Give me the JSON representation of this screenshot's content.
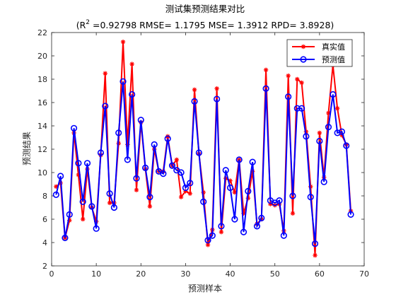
{
  "chart_data": {
    "type": "line",
    "title": "测试集预测结果对比",
    "subtitle_prefix": "(R",
    "subtitle_sup": "2",
    "subtitle_rest": " =0.92798 RMSE= 1.1795 MSE= 1.3912 RPD= 3.8928)",
    "xlabel": "预测样本",
    "ylabel": "预测结果",
    "xlim": [
      0,
      70
    ],
    "ylim": [
      2,
      22
    ],
    "xticks": [
      0,
      10,
      20,
      30,
      40,
      50,
      60,
      70
    ],
    "yticks": [
      2,
      4,
      6,
      8,
      10,
      12,
      14,
      16,
      18,
      20,
      22
    ],
    "grid": false,
    "legend_position": "top-right",
    "x": [
      1,
      2,
      3,
      4,
      5,
      6,
      7,
      8,
      9,
      10,
      11,
      12,
      13,
      14,
      15,
      16,
      17,
      18,
      19,
      20,
      21,
      22,
      23,
      24,
      25,
      26,
      27,
      28,
      29,
      30,
      31,
      32,
      33,
      34,
      35,
      36,
      37,
      38,
      39,
      40,
      41,
      42,
      43,
      44,
      45,
      46,
      47,
      48,
      49,
      50,
      51,
      52,
      53,
      54,
      55,
      56,
      57,
      58,
      59,
      60,
      61,
      62,
      63,
      64,
      65,
      66,
      67
    ],
    "series": [
      {
        "name": "真实值",
        "color": "#ff0000",
        "marker": "asterisk",
        "values": [
          8.8,
          9.1,
          4.4,
          5.9,
          13.4,
          9.8,
          6.0,
          10.3,
          7.0,
          5.8,
          11.5,
          18.5,
          7.4,
          7.4,
          12.5,
          21.2,
          12.4,
          19.3,
          8.5,
          14.3,
          10.3,
          7.1,
          12.0,
          10.1,
          10.1,
          13.1,
          10.6,
          11.1,
          7.9,
          8.4,
          8.2,
          17.1,
          11.6,
          8.3,
          3.8,
          5.1,
          17.2,
          4.9,
          9.5,
          9.3,
          8.3,
          11.1,
          6.5,
          7.8,
          10.1,
          5.6,
          6.0,
          18.8,
          7.3,
          7.2,
          7.3,
          5.0,
          18.3,
          6.5,
          18.0,
          17.7,
          13.5,
          8.8,
          2.9,
          13.4,
          9.6,
          15.1,
          19.2,
          15.5,
          13.2,
          12.4,
          6.7
        ]
      },
      {
        "name": "预测值",
        "color": "#0000ff",
        "marker": "circle",
        "values": [
          8.1,
          9.7,
          4.4,
          6.4,
          13.8,
          10.8,
          7.5,
          10.8,
          7.1,
          5.2,
          11.7,
          15.7,
          8.2,
          7.0,
          13.4,
          17.8,
          11.1,
          16.7,
          9.5,
          14.5,
          10.4,
          7.9,
          12.4,
          10.1,
          9.9,
          12.9,
          10.6,
          10.2,
          10.0,
          8.7,
          9.1,
          16.1,
          11.7,
          7.5,
          4.2,
          4.6,
          16.3,
          5.4,
          10.2,
          8.7,
          6.0,
          11.1,
          4.9,
          8.4,
          10.9,
          5.4,
          6.1,
          17.2,
          7.6,
          7.4,
          7.6,
          4.6,
          16.5,
          8.0,
          15.5,
          15.5,
          13.1,
          7.9,
          3.9,
          12.7,
          9.2,
          13.9,
          16.7,
          13.4,
          13.5,
          12.3,
          6.4
        ]
      }
    ]
  }
}
